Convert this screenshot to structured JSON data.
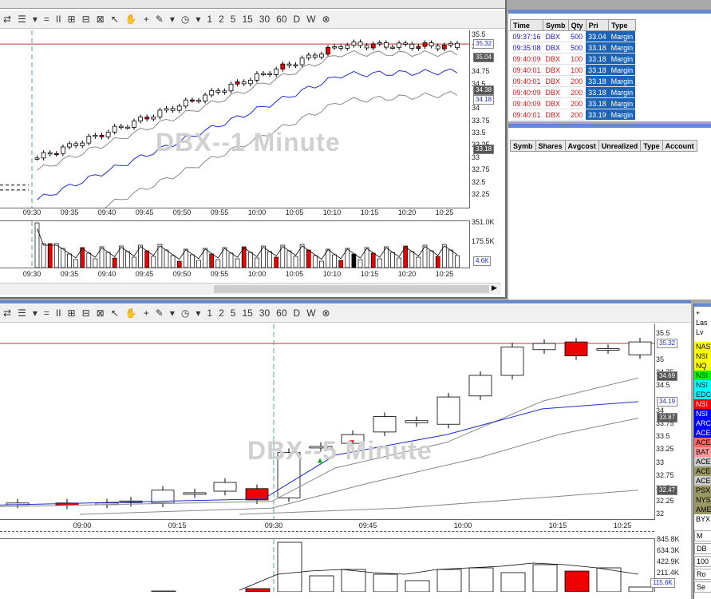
{
  "toolbar": {
    "items": [
      "⇄",
      "☰",
      "▾",
      "=",
      "II",
      "⊞",
      "⊟",
      "⊠",
      "↖",
      "✋",
      "+",
      "✎",
      "▾",
      "◷",
      "▾",
      "1",
      "2",
      "5",
      "15",
      "30",
      "60",
      "D",
      "W",
      "⊗"
    ]
  },
  "chart1": {
    "watermark": "DBX--1 Minute",
    "y_ticks": [
      "35.5",
      "35.25",
      "34.75",
      "34.5",
      "34",
      "33.75",
      "33.5",
      "33.25",
      "33",
      "32.75",
      "32.5",
      "32.25"
    ],
    "x_ticks": [
      "09:30",
      "09:35",
      "09:40",
      "09:45",
      "09:50",
      "09:55",
      "10:00",
      "10:05",
      "10:10",
      "10:15",
      "10:20",
      "10:25"
    ],
    "badges": [
      "35.32",
      "35.04",
      "34.38",
      "34.18",
      "33.18"
    ],
    "vol_ticks": [
      "351.0K",
      "175.5K"
    ],
    "vol_badge": "4.6K"
  },
  "chart2": {
    "watermark": "DBX--5 Minute",
    "y_ticks": [
      "35.5",
      "35",
      "34.75",
      "34.5",
      "34",
      "33.75",
      "33.5",
      "33.25",
      "33",
      "32.75",
      "32.5",
      "32.25",
      "32"
    ],
    "x_ticks": [
      "09:00",
      "09:15",
      "09:30",
      "09:45",
      "10:00",
      "10:15",
      "10:25"
    ],
    "badges": [
      "35.32",
      "34.69",
      "34.19",
      "33.87",
      "32.47"
    ],
    "vol_ticks": [
      "845.8K",
      "634.3K",
      "422.9K",
      "211.4K",
      "0"
    ],
    "vol_badge": "115.6K"
  },
  "orders": {
    "headers": [
      "Time",
      "Symb",
      "Qty",
      "Pri",
      "Type"
    ],
    "rows": [
      {
        "time": "09:37:16",
        "symb": "DBX",
        "qty": "500",
        "price": "33.04",
        "type": "Margin",
        "color": "#1a1acc"
      },
      {
        "time": "09:35:08",
        "symb": "DBX",
        "qty": "500",
        "price": "33.18",
        "type": "Margin",
        "color": "#1a1acc"
      },
      {
        "time": "09:40:09",
        "symb": "DBX",
        "qty": "100",
        "price": "33.18",
        "type": "Margin",
        "color": "#cc1a1a"
      },
      {
        "time": "09:40:01",
        "symb": "DBX",
        "qty": "100",
        "price": "33.18",
        "type": "Margin",
        "color": "#cc1a1a"
      },
      {
        "time": "09:40:01",
        "symb": "DBX",
        "qty": "200",
        "price": "33.18",
        "type": "Margin",
        "color": "#cc1a1a"
      },
      {
        "time": "09:40:09",
        "symb": "DBX",
        "qty": "200",
        "price": "33.18",
        "type": "Margin",
        "color": "#cc1a1a"
      },
      {
        "time": "09:40:09",
        "symb": "DBX",
        "qty": "200",
        "price": "33.18",
        "type": "Margin",
        "color": "#cc1a1a"
      },
      {
        "time": "09:40:01",
        "symb": "DBX",
        "qty": "200",
        "price": "33.19",
        "type": "Margin",
        "color": "#cc1a1a"
      }
    ]
  },
  "positions": {
    "headers": [
      "Symb",
      "Shares",
      "Avgcost",
      "Unrealized",
      "Type",
      "Account"
    ]
  },
  "side": {
    "top": [
      "+",
      "Las",
      "Lv"
    ],
    "routes": [
      {
        "label": "NAS",
        "bg": "#ffff00"
      },
      {
        "label": "NSI",
        "bg": "#ffff00"
      },
      {
        "label": "NQ",
        "bg": "#ffff00"
      },
      {
        "label": "NSI",
        "bg": "#00ff00"
      },
      {
        "label": "NSI",
        "bg": "#00ffff"
      },
      {
        "label": "EDC",
        "bg": "#00ffff"
      },
      {
        "label": "NSI",
        "bg": "#ff0000"
      },
      {
        "label": "NSI",
        "bg": "#0000ff"
      },
      {
        "label": "ARC",
        "bg": "#0000ff"
      },
      {
        "label": "ACE",
        "bg": "#0000ff"
      },
      {
        "label": "ACE",
        "bg": "#ff6666"
      },
      {
        "label": "BAT",
        "bg": "#ff9999"
      },
      {
        "label": "ACE",
        "bg": "#cccccc"
      },
      {
        "label": "ACE",
        "bg": "#999966"
      },
      {
        "label": "ACE",
        "bg": "#cccccc"
      },
      {
        "label": "PSX",
        "bg": "#999966"
      },
      {
        "label": "NYS",
        "bg": "#999966"
      },
      {
        "label": "AME",
        "bg": "#999966"
      },
      {
        "label": "BYX",
        "bg": "#ffffff"
      }
    ],
    "bottom": [
      "M",
      "DB",
      "100",
      "Ro",
      "Se"
    ]
  }
}
